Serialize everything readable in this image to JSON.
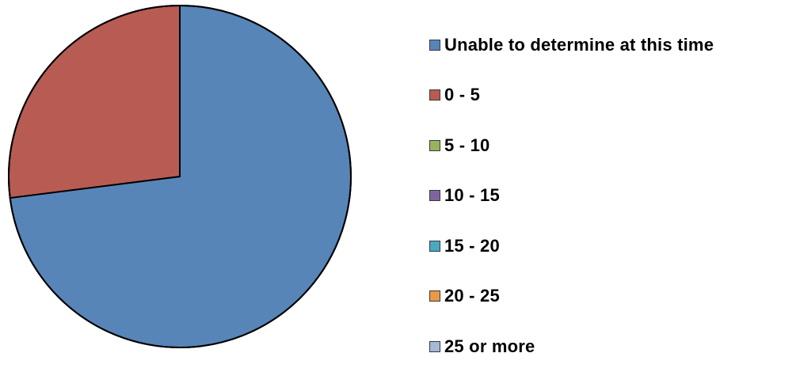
{
  "chart_data": {
    "type": "pie",
    "categories": [
      "Unable to determine at this time",
      "0 - 5",
      "5 - 10",
      "10 - 15",
      "15 - 20",
      "20 - 25",
      "25 or more"
    ],
    "values": [
      73,
      27,
      0,
      0,
      0,
      0,
      0
    ],
    "colors": [
      "#5785B8",
      "#B85C53",
      "#97B45A",
      "#7E65A0",
      "#4AA9C2",
      "#E89A45",
      "#A5B8D8"
    ],
    "start_angle_deg": 0,
    "direction": "clockwise",
    "legend_position": "right"
  }
}
